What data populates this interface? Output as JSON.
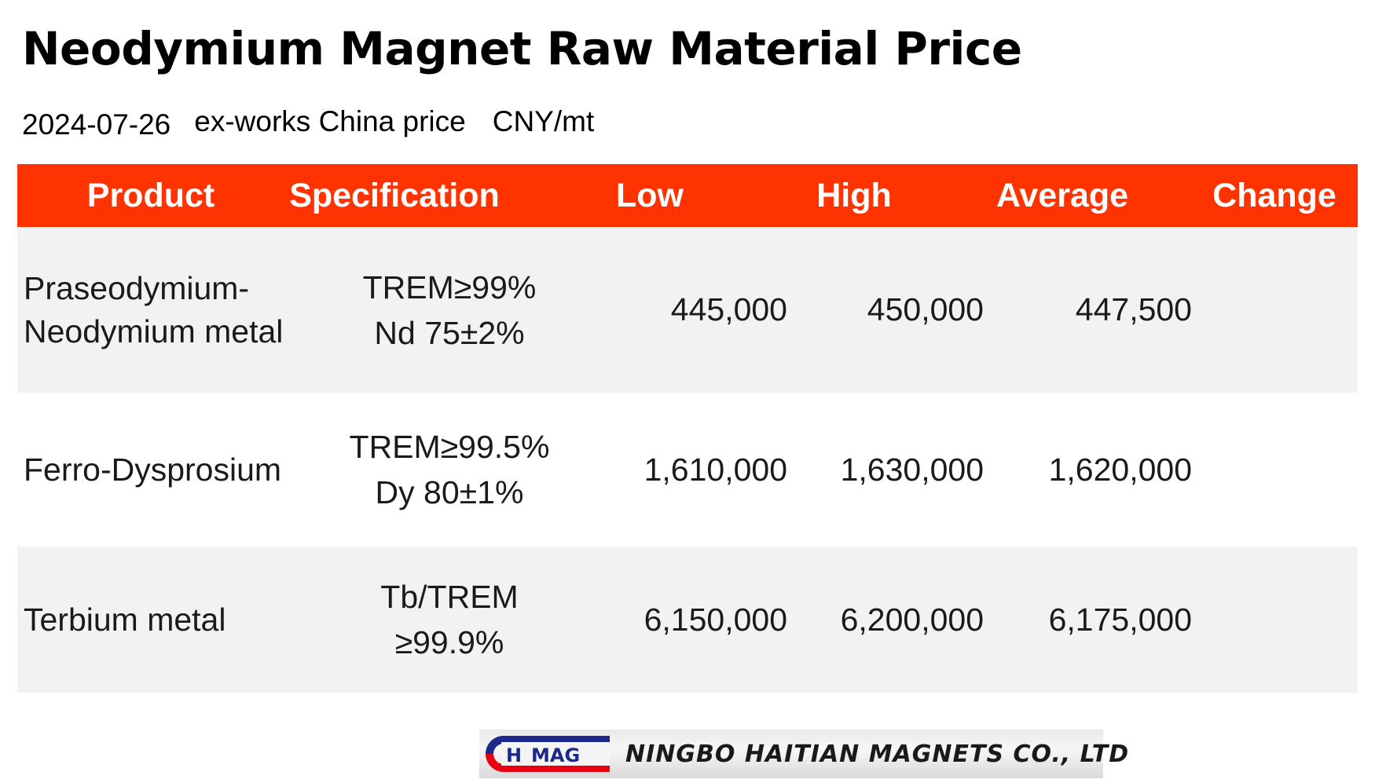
{
  "title": "Neodymium Magnet Raw Material Price",
  "subtitle": {
    "date": "2024-07-26",
    "basis": "ex-works China price",
    "unit": "CNY/mt"
  },
  "colors": {
    "header_bg": "#ff3300",
    "header_text": "#ffffff",
    "row_shaded": "#f2f2f2",
    "row_plain": "#ffffff"
  },
  "table": {
    "headers": [
      "Product",
      "Specification",
      "Low",
      "High",
      "Average",
      "Change"
    ],
    "rows": [
      {
        "product": [
          "Praseodymium-",
          "Neodymium metal"
        ],
        "spec": [
          "TREM≥99%",
          "Nd 75±2%"
        ],
        "low": "445,000",
        "high": "450,000",
        "average": "447,500",
        "change": ""
      },
      {
        "product": [
          "Ferro-Dysprosium"
        ],
        "spec": [
          "TREM≥99.5%",
          "Dy 80±1%"
        ],
        "low": "1,610,000",
        "high": "1,630,000",
        "average": "1,620,000",
        "change": ""
      },
      {
        "product": [
          "Terbium metal"
        ],
        "spec": [
          "Tb/TREM",
          "≥99.9%"
        ],
        "low": "6,150,000",
        "high": "6,200,000",
        "average": "6,175,000",
        "change": ""
      }
    ]
  },
  "logo": {
    "mark_letters": [
      "H",
      "MAG"
    ],
    "company_name": "NINGBO HAITIAN MAGNETS CO., LTD",
    "mark_colors": [
      "#1b2a8a",
      "#e60012"
    ]
  }
}
